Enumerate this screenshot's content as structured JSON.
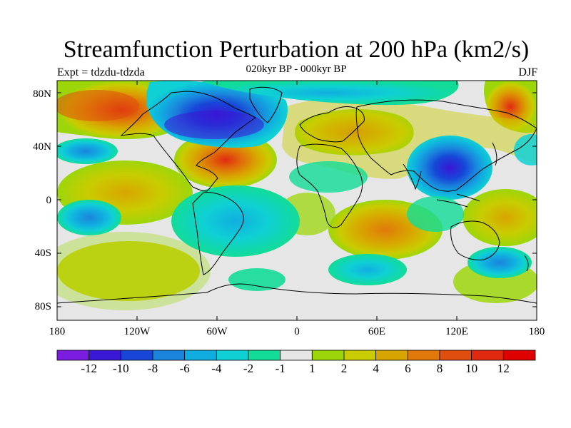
{
  "title": "Streamfunction Perturbation at 200 hPa (km2/s)",
  "subtitle": "020kyr BP - 000kyr BP",
  "experiment": "Expt = tdzdu-tdzda",
  "season": "DJF",
  "lat_ticks": [
    "80N",
    "40N",
    "0",
    "40S",
    "80S"
  ],
  "lon_ticks": [
    "180",
    "120W",
    "60W",
    "0",
    "60E",
    "120E",
    "180"
  ],
  "colorbar": {
    "labels": [
      "-12",
      "-10",
      "-8",
      "-6",
      "-4",
      "-2",
      "-1",
      "1",
      "2",
      "4",
      "6",
      "8",
      "10",
      "12"
    ],
    "colors": [
      "#7a1de0",
      "#3a17d6",
      "#1746d8",
      "#1a84dc",
      "#10aee0",
      "#0fd0d4",
      "#12dc97",
      "#e6e6e6",
      "#9cd60a",
      "#c9cc00",
      "#d8a500",
      "#e0790a",
      "#e04e0d",
      "#df2a10",
      "#e00000"
    ]
  },
  "map_colors": {
    "background": "#e6e6e6",
    "coastline": "#000000"
  }
}
